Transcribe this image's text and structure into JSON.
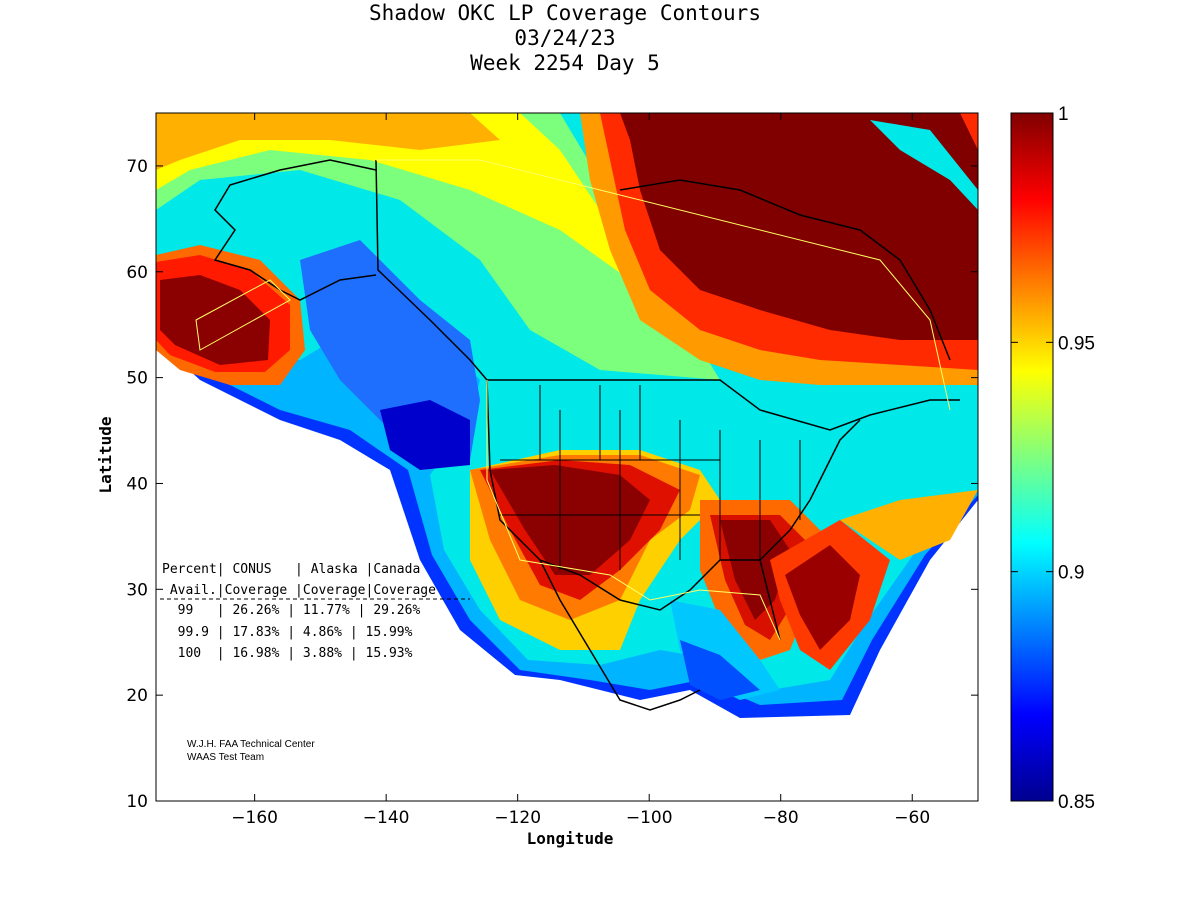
{
  "title": {
    "line1": "Shadow OKC LP Coverage Contours",
    "line2": "03/24/23",
    "line3": "Week 2254 Day 5"
  },
  "axes": {
    "xlabel": "Longitude",
    "ylabel": "Latitude",
    "xlim": [
      -175,
      -50
    ],
    "ylim": [
      10,
      75
    ],
    "xticks": [
      -160,
      -140,
      -120,
      -100,
      -80,
      -60
    ],
    "xtick_labels": [
      "−160",
      "−140",
      "−120",
      "−100",
      "−80",
      "−60"
    ],
    "yticks": [
      10,
      20,
      30,
      40,
      50,
      60,
      70
    ],
    "ytick_labels": [
      "10",
      "20",
      "30",
      "40",
      "50",
      "60",
      "70"
    ]
  },
  "colorbar": {
    "range": [
      0.85,
      1.0
    ],
    "ticks": [
      1,
      0.95,
      0.9,
      0.85
    ],
    "tick_labels": [
      "1",
      "0.95",
      "0.9",
      "0.85"
    ],
    "colormap": "jet"
  },
  "stats_table": {
    "header1": "Percent| CONUS   | Alaska |Canada",
    "header2": " Avail.|Coverage |Coverage|Coverage",
    "rows": [
      "  99   | 26.26% | 11.77% | 29.26%",
      "  99.9 | 17.83% | 4.86% | 15.99%",
      "  100  | 16.98% | 3.88% | 15.93%"
    ]
  },
  "credit": {
    "line1": "W.J.H. FAA Technical Center",
    "line2": "WAAS Test Team"
  },
  "chart_data": {
    "type": "heatmap",
    "title": "Shadow OKC LP Coverage Contours",
    "subtitle": "03/24/23 Week 2254 Day 5",
    "xlabel": "Longitude",
    "ylabel": "Latitude",
    "xlim": [
      -175,
      -50
    ],
    "ylim": [
      10,
      75
    ],
    "value_range": [
      0.85,
      1.0
    ],
    "regions": [
      {
        "name": "CONUS",
        "coverage_99": "26.26%",
        "coverage_99_9": "17.83%",
        "coverage_100": "16.98%"
      },
      {
        "name": "Alaska",
        "coverage_99": "11.77%",
        "coverage_99_9": "4.86%",
        "coverage_100": "3.88%"
      },
      {
        "name": "Canada",
        "coverage_99": "29.26%",
        "coverage_99_9": "15.99%",
        "coverage_100": "15.93%"
      }
    ]
  }
}
